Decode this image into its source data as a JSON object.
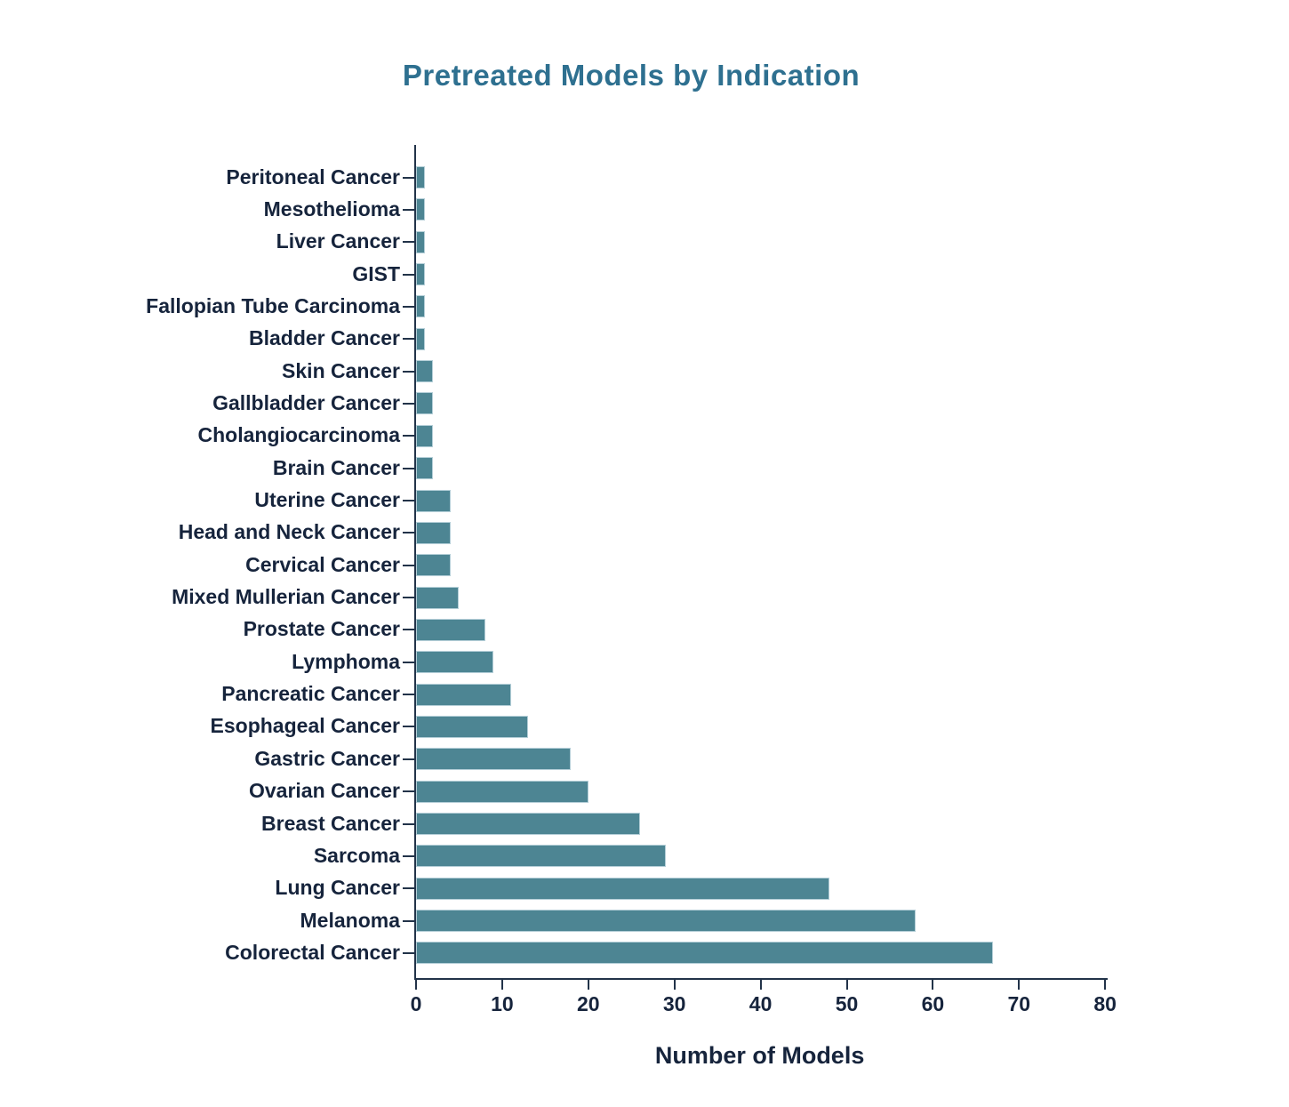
{
  "chart_data": {
    "type": "bar",
    "orientation": "horizontal",
    "title": "Pretreated Models by Indication",
    "xlabel": "Number of Models",
    "ylabel": "",
    "xlim": [
      0,
      80
    ],
    "x_ticks": [
      0,
      10,
      20,
      30,
      40,
      50,
      60,
      70,
      80
    ],
    "grid": false,
    "legend": "none",
    "categories": [
      "Peritoneal Cancer",
      "Mesothelioma",
      "Liver Cancer",
      "GIST",
      "Fallopian Tube Carcinoma",
      "Bladder Cancer",
      "Skin Cancer",
      "Gallbladder Cancer",
      "Cholangiocarcinoma",
      "Brain Cancer",
      "Uterine Cancer",
      "Head and Neck Cancer",
      "Cervical Cancer",
      "Mixed Mullerian Cancer",
      "Prostate Cancer",
      "Lymphoma",
      "Pancreatic Cancer",
      "Esophageal Cancer",
      "Gastric Cancer",
      "Ovarian Cancer",
      "Breast Cancer",
      "Sarcoma",
      "Lung Cancer",
      "Melanoma",
      "Colorectal Cancer"
    ],
    "values": [
      1,
      1,
      1,
      1,
      1,
      1,
      2,
      2,
      2,
      2,
      4,
      4,
      4,
      5,
      8,
      9,
      11,
      13,
      18,
      20,
      26,
      29,
      48,
      58,
      67
    ],
    "colors": {
      "bar_fill": "#4d8593",
      "bar_edge": "#b5cfd8",
      "axis": "#223349",
      "tick_label_text": "#16243c",
      "category_label_text": "#16243c",
      "title_text": "#2e7090",
      "background": "#ffffff"
    }
  }
}
